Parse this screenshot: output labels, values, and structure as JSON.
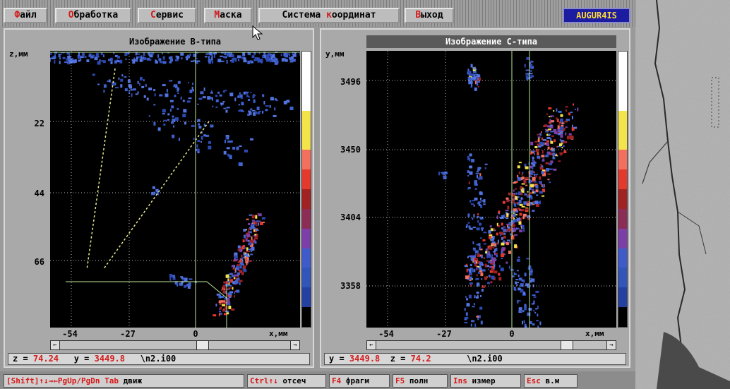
{
  "window": {
    "brand": "AUGUR4IS"
  },
  "menu": [
    {
      "hot": "Ф",
      "rest": "айл"
    },
    {
      "hot": "О",
      "rest": "бработка"
    },
    {
      "hot": "С",
      "rest": "ервис"
    },
    {
      "hot": "М",
      "rest": "аска"
    },
    {
      "pre": "Система ",
      "hot": "к",
      "rest": "оординат"
    },
    {
      "hot": "В",
      "rest": "ыход"
    }
  ],
  "panel_b": {
    "title": "Изображение B-типа",
    "y_axis_label": "z,мм",
    "y_ticks": [
      "22",
      "44",
      "66"
    ],
    "x_ticks": [
      "-54",
      "-27",
      "0"
    ],
    "x_axis_label": "x,мм",
    "scroll_left": "←",
    "scroll_right": "→",
    "status": {
      "k1": "z =",
      "v1": "74.24",
      "k2": "y =",
      "v2": "3449.8",
      "file": "\\n2.i00"
    }
  },
  "panel_c": {
    "title": "Изображение C-типа",
    "y_axis_label": "y,мм",
    "y_ticks": [
      "3496",
      "3450",
      "3404",
      "3358"
    ],
    "x_ticks": [
      "-54",
      "-27",
      "0"
    ],
    "x_axis_label": "x,мм",
    "scroll_left": "←",
    "scroll_right": "→",
    "status": {
      "k1": "y =",
      "v1": "3449.8",
      "k2": "z =",
      "v2": "74.2",
      "file": "\\n2.i00"
    }
  },
  "colorbar_colors": [
    "#ffffff",
    "#ffffff",
    "#ffffff",
    "#f2e44a",
    "#f2e44a",
    "#f36f5e",
    "#e33a2d",
    "#a02222",
    "#8b2d55",
    "#7c3fa8",
    "#3f5bc9",
    "#3155b8",
    "#2440a0",
    "#000000"
  ],
  "hotkeys": [
    {
      "key": "[Shift]↑↓→←PgUp/PgDn Tab",
      "desc": "движ"
    },
    {
      "key": "Ctrl↑↓",
      "desc": "отсеч"
    },
    {
      "key": "F4",
      "desc": "фрагм"
    },
    {
      "key": "F5",
      "desc": "полн"
    },
    {
      "key": "Ins",
      "desc": "измер"
    },
    {
      "key": "Esc",
      "desc": "в.м"
    }
  ]
}
